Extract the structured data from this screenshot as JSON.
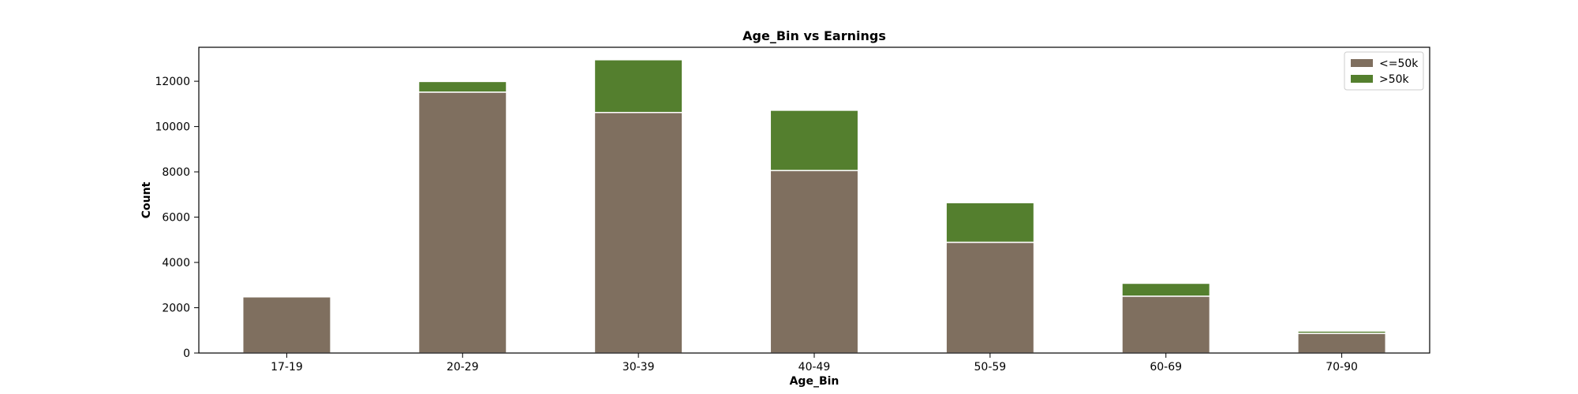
{
  "chart_data": {
    "type": "bar",
    "stacked": true,
    "title": "Age_Bin vs Earnings",
    "xlabel": "Age_Bin",
    "ylabel": "Count",
    "ylim": [
      0,
      13500
    ],
    "yticks": [
      0,
      2000,
      4000,
      6000,
      8000,
      10000,
      12000
    ],
    "categories": [
      "17-19",
      "20-29",
      "30-39",
      "40-49",
      "50-59",
      "60-69",
      "70-90"
    ],
    "series": [
      {
        "name": "<=50k",
        "color": "#7f6f5f",
        "values": [
          2480,
          11520,
          10620,
          8060,
          4890,
          2510,
          870
        ]
      },
      {
        "name": ">50k",
        "color": "#547f2e",
        "values": [
          0,
          470,
          2330,
          2660,
          1750,
          570,
          100
        ]
      }
    ],
    "legend_position": "top-right",
    "grid": false
  }
}
